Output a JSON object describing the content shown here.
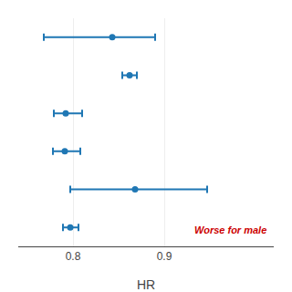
{
  "chart_data": {
    "type": "scatter",
    "orientation": "horizontal",
    "categories": [
      null,
      null,
      null,
      null,
      null,
      null
    ],
    "values": [
      0.843,
      0.862,
      0.792,
      0.791,
      0.868,
      0.797
    ],
    "lo": [
      0.768,
      0.854,
      0.779,
      0.778,
      0.797,
      0.789
    ],
    "hi": [
      0.89,
      0.87,
      0.81,
      0.808,
      0.947,
      0.806
    ],
    "xlabel": "HR",
    "xlim": [
      0.74,
      1.02
    ],
    "xticks": [
      0.8,
      0.9
    ],
    "grid": true,
    "tick_labels": "x",
    "annotations": [
      {
        "text": "Worse for male",
        "color": "#cc0000"
      }
    ]
  }
}
